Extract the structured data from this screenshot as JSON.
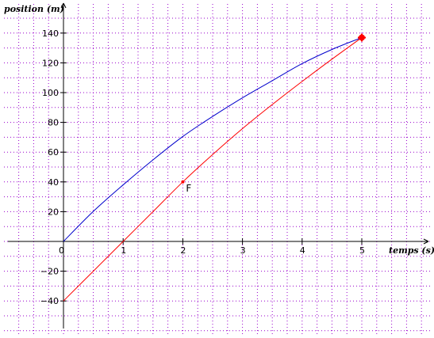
{
  "chart_data": {
    "type": "line",
    "xlabel": "temps (s)",
    "ylabel": "position (m)",
    "xlim": [
      -1,
      6
    ],
    "ylim": [
      -60,
      160
    ],
    "x_ticks": [
      0,
      1,
      2,
      3,
      4,
      5
    ],
    "y_ticks": [
      -40,
      -20,
      20,
      40,
      60,
      80,
      100,
      120,
      140
    ],
    "x_tick_labels": [
      "0",
      "1",
      "2",
      "3",
      "4",
      "5"
    ],
    "y_tick_labels": [
      "−40",
      "−20",
      "20",
      "40",
      "60",
      "80",
      "100",
      "120",
      "140"
    ],
    "grid": true,
    "grid_step": {
      "x": 0.25,
      "y": 10
    },
    "series": [
      {
        "color": "#0000cc",
        "x": [
          0,
          0.5,
          1,
          1.5,
          2,
          2.5,
          3,
          3.5,
          4,
          4.5,
          5
        ],
        "y": [
          0,
          20.2,
          38,
          54.8,
          70.5,
          84,
          96.5,
          108,
          119.5,
          129,
          137
        ]
      },
      {
        "color": "#ff0000",
        "x": [
          0,
          0.5,
          1,
          1.5,
          2,
          2.5,
          3,
          3.5,
          4,
          4.5,
          5
        ],
        "y": [
          -40,
          -20,
          0,
          20,
          40,
          58.4,
          75.8,
          92,
          107.5,
          122.5,
          137
        ]
      }
    ],
    "points": [
      {
        "label": "F",
        "x": 2,
        "y": 40,
        "color": "#ff0000"
      },
      {
        "label": "",
        "x": 5,
        "y": 137,
        "color": "#ff0000"
      }
    ]
  }
}
